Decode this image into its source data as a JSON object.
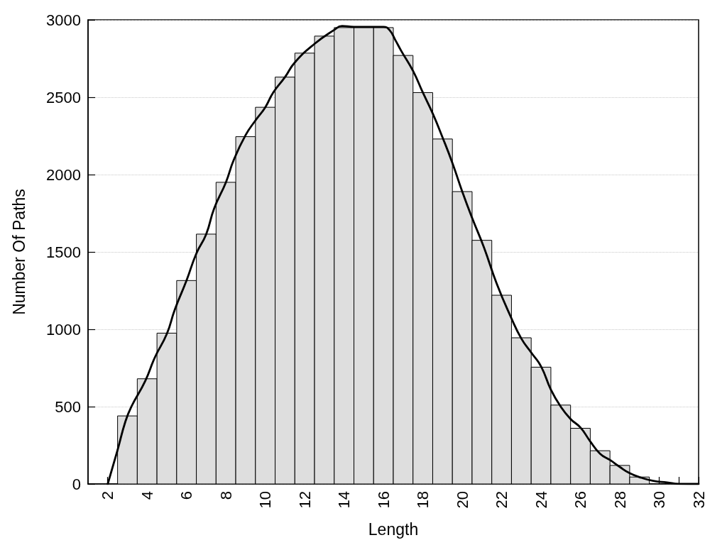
{
  "chart_data": {
    "type": "histogram",
    "xlabel": "Length",
    "ylabel": "Number Of Paths",
    "bins": [
      2.5,
      3.5,
      4.5,
      5.5,
      6.5,
      7.5,
      8.5,
      9.5,
      10.5,
      11.5,
      12.5,
      13.5,
      14.5,
      15.5,
      16.5,
      17.5,
      18.5,
      19.5,
      20.5,
      21.5,
      22.5,
      23.5,
      24.5,
      25.5,
      26.5,
      27.5,
      28.5,
      29.5
    ],
    "series": [
      {
        "color": "#dedede",
        "values": [
          440,
          680,
          975,
          1315,
          1615,
          1950,
          2245,
          2435,
          2630,
          2785,
          2895,
          2950,
          2950,
          2950,
          2770,
          2530,
          2230,
          1890,
          1575,
          1220,
          945,
          755,
          510,
          360,
          215,
          120,
          45
        ]
      },
      {
        "type": "line",
        "color": "#000000",
        "x": [
          2,
          2.5,
          2.9,
          3.2,
          3.9,
          4.4,
          5,
          5.4,
          6,
          6.5,
          7,
          7.4,
          8,
          8.4,
          9,
          9.5,
          10,
          10.4,
          11,
          11.5,
          12.5,
          13.5,
          13.9,
          14.5,
          16,
          16.3,
          16.6,
          16.9,
          17.5,
          18,
          18.5,
          19,
          19.5,
          20,
          20.5,
          21.1,
          21.75,
          22.5,
          23,
          23.5,
          24,
          24.5,
          25,
          25.5,
          26,
          26.5,
          27,
          27.5,
          28,
          28.5,
          29.1,
          29.7,
          30.4,
          31,
          32
        ],
        "values": [
          0,
          220,
          405,
          500,
          665,
          820,
          970,
          1125,
          1315,
          1490,
          1615,
          1780,
          1950,
          2095,
          2255,
          2350,
          2435,
          2530,
          2630,
          2725,
          2845,
          2935,
          2960,
          2955,
          2955,
          2935,
          2870,
          2800,
          2670,
          2530,
          2395,
          2240,
          2075,
          1890,
          1720,
          1530,
          1295,
          1070,
          940,
          850,
          760,
          610,
          500,
          420,
          365,
          275,
          195,
          155,
          110,
          70,
          40,
          20,
          10,
          1,
          0
        ]
      }
    ],
    "xlim": [
      1,
      32
    ],
    "ylim": [
      0,
      3000
    ],
    "xticks": [
      2,
      4,
      6,
      8,
      10,
      12,
      14,
      16,
      18,
      20,
      22,
      24,
      26,
      28,
      30,
      {
        "value": 31,
        "label": null
      },
      32
    ],
    "yticks": [
      0,
      500,
      1000,
      1500,
      2000,
      2500,
      3000
    ],
    "grid": "y",
    "line_style": "solid"
  }
}
